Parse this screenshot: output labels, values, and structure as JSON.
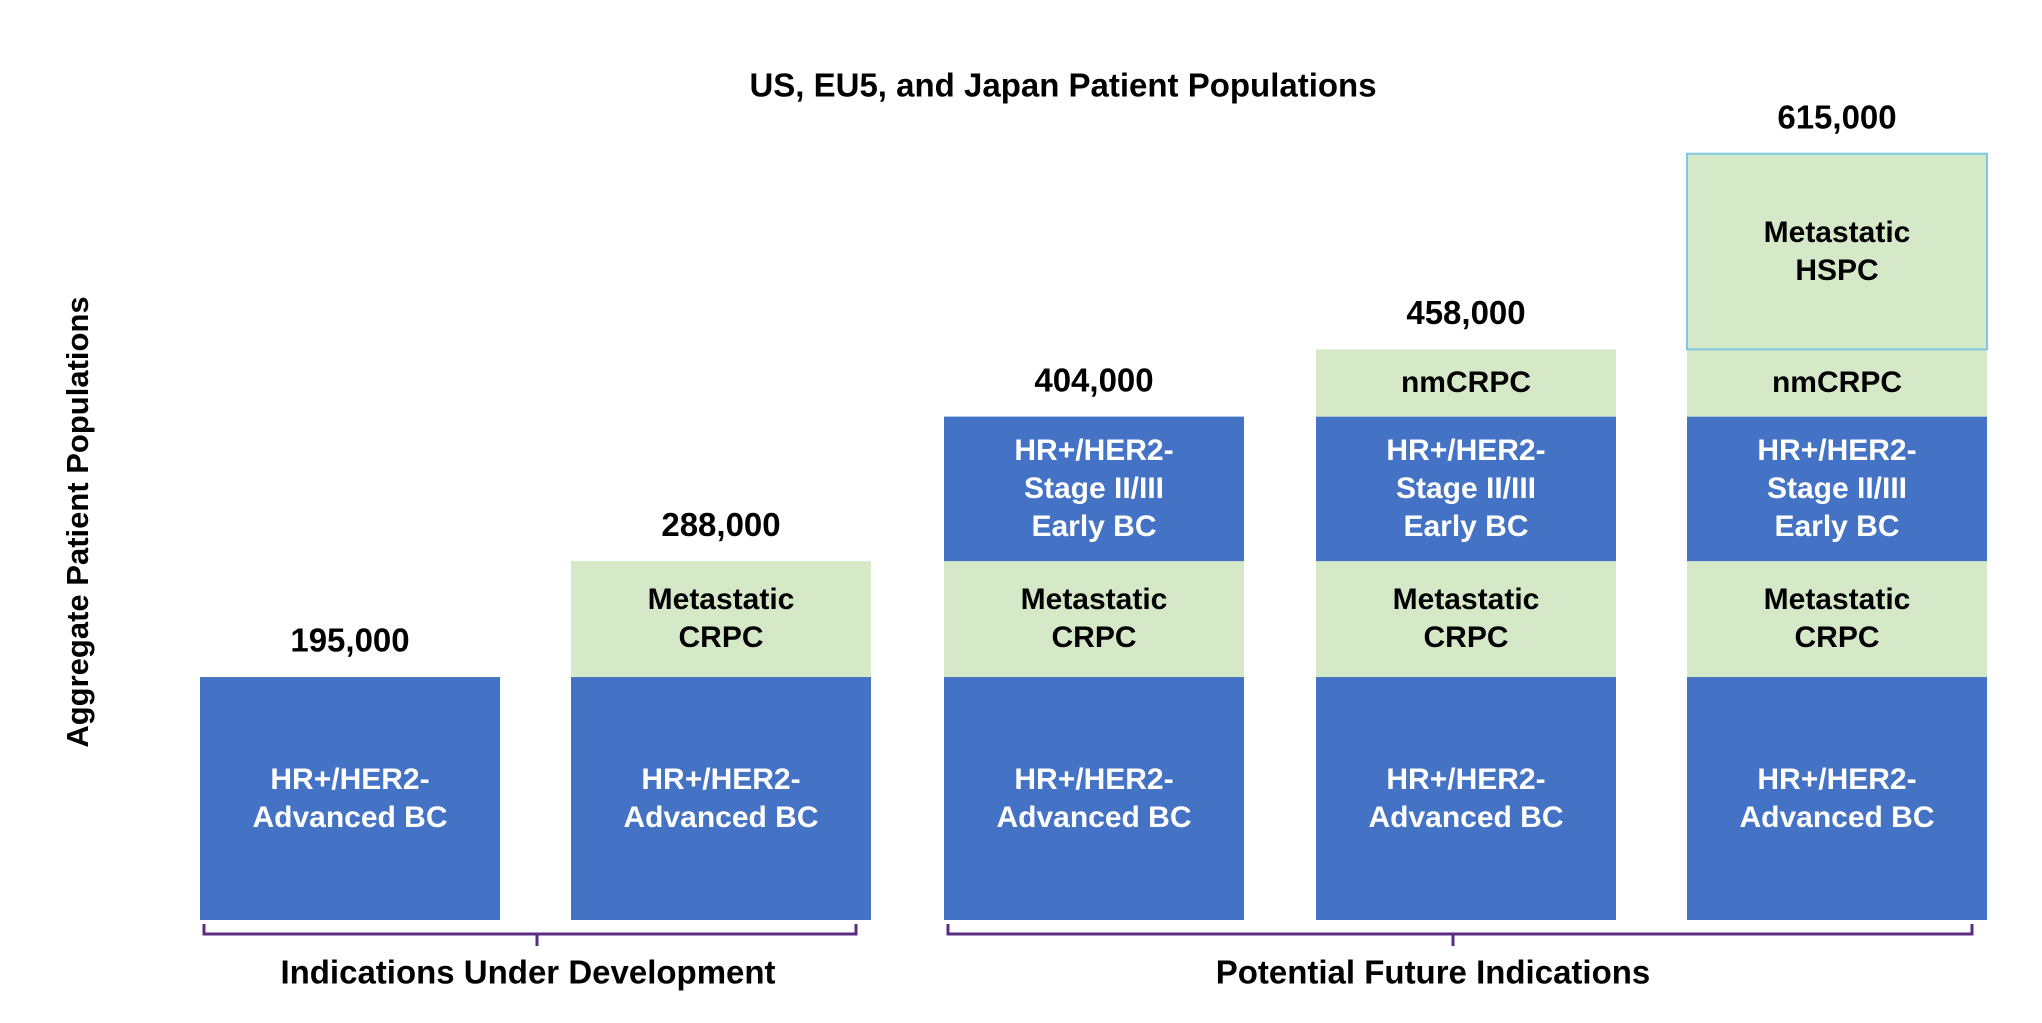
{
  "chart_data": {
    "type": "stacked-bar",
    "title": "US, EU5, and Japan Patient Populations",
    "ylabel": "Aggregate Patient Populations",
    "categories": [
      null,
      null,
      null,
      null,
      null
    ],
    "series": [
      {
        "name": "HR+/HER2-\nAdvanced BC",
        "color": "#4472c4",
        "text_color": "#ffffff",
        "values": [
          195000,
          195000,
          195000,
          195000,
          195000
        ]
      },
      {
        "name": "Metastatic\nCRPC",
        "color": "#d5e8c8",
        "text_color": "#000000",
        "values": [
          null,
          93000,
          93000,
          93000,
          93000
        ]
      },
      {
        "name": "HR+/HER2-\nStage II/III\nEarly BC",
        "color": "#4472c4",
        "text_color": "#ffffff",
        "values": [
          null,
          null,
          116000,
          116000,
          116000
        ]
      },
      {
        "name": "nmCRPC",
        "color": "#d5e8c8",
        "text_color": "#000000",
        "values": [
          null,
          null,
          null,
          54000,
          54000
        ]
      },
      {
        "name": "Metastatic\nHSPC",
        "color": "#d5e8c8",
        "text_color": "#000000",
        "edgecolor": "#7ec8e3",
        "values": [
          null,
          null,
          null,
          null,
          157000
        ]
      }
    ],
    "total_labels": [
      "195,000",
      "288,000",
      "404,000",
      "458,000",
      "615,000"
    ],
    "group_labels": [
      "Indications Under Development",
      "Potential Future Indications"
    ],
    "bracket_color": "#5b2c82"
  }
}
